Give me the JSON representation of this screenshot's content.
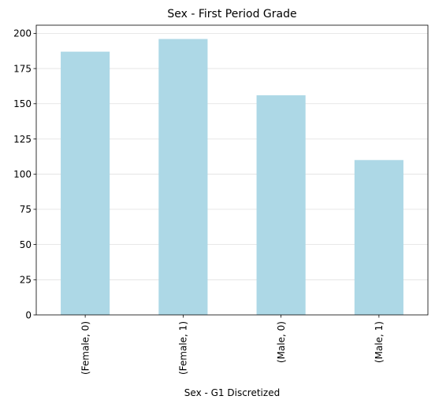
{
  "chart_data": {
    "type": "bar",
    "title": "Sex - First Period Grade",
    "xlabel": "Sex - G1 Discretized",
    "ylabel": "",
    "categories": [
      "(Female, 0)",
      "(Female, 1)",
      "(Male, 0)",
      "(Male, 1)"
    ],
    "values": [
      187,
      196,
      156,
      110
    ],
    "ylim": [
      0,
      205.8
    ],
    "yticks": [
      "0",
      "25",
      "50",
      "75",
      "100",
      "125",
      "150",
      "175",
      "200"
    ],
    "grid": "y",
    "legend": "none",
    "bar_color": "#add8e6"
  }
}
